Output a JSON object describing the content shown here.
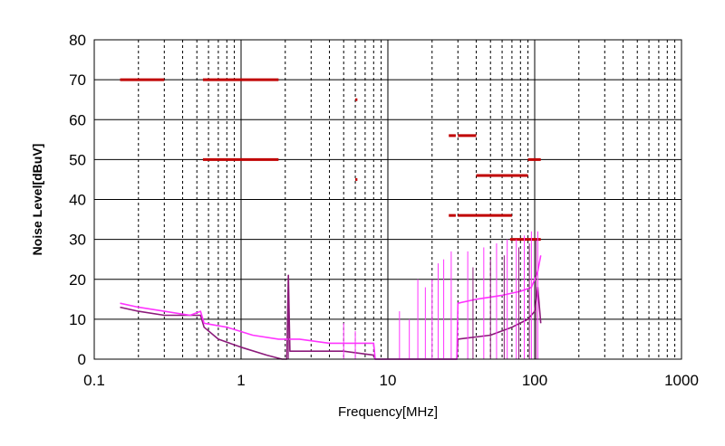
{
  "chart_data": {
    "type": "line",
    "title": "",
    "xlabel": "Frequency[MHz]",
    "ylabel": "Noise Level[dBuV]",
    "x_scale": "log",
    "xlim": [
      0.1,
      1000
    ],
    "ylim": [
      0,
      80
    ],
    "x_tick_labels": [
      "0.1",
      "1",
      "10",
      "100",
      "1000"
    ],
    "x_tick_values": [
      0.1,
      1,
      10,
      100,
      1000
    ],
    "y_tick_labels": [
      "0",
      "10",
      "20",
      "30",
      "40",
      "50",
      "60",
      "70",
      "80"
    ],
    "y_tick_values": [
      0,
      10,
      20,
      30,
      40,
      50,
      60,
      70,
      80
    ],
    "grid": true,
    "legend": "none",
    "colors": {
      "limit": "#c00000",
      "series_dark": "#8b1a7a",
      "series_light": "#ff33ff",
      "grid": "#000000"
    },
    "limit_lines": [
      {
        "x": [
          0.15,
          0.3
        ],
        "y": 70
      },
      {
        "x": [
          0.55,
          1.8
        ],
        "y": 70
      },
      {
        "x": [
          0.55,
          1.8
        ],
        "y": 50
      },
      {
        "x": [
          6.0,
          6.2
        ],
        "y": 65
      },
      {
        "x": [
          6.0,
          6.2
        ],
        "y": 45
      },
      {
        "x": [
          26,
          29
        ],
        "y": 56
      },
      {
        "x": [
          30,
          40
        ],
        "y": 56
      },
      {
        "x": [
          40,
          90
        ],
        "y": 46
      },
      {
        "x": [
          90,
          110
        ],
        "y": 50
      },
      {
        "x": [
          26,
          29
        ],
        "y": 36
      },
      {
        "x": [
          30,
          70
        ],
        "y": 36
      },
      {
        "x": [
          68,
          110
        ],
        "y": 30
      }
    ],
    "series": [
      {
        "color": "#8b1a7a",
        "x": [
          0.15,
          0.2,
          0.3,
          0.45,
          0.53,
          0.56,
          0.7,
          1.0,
          1.5,
          1.9,
          2.05,
          2.1,
          2.15,
          3.0,
          5.0,
          8.0,
          8.2,
          15,
          25,
          29.5,
          30,
          50,
          70,
          90,
          100,
          105,
          110
        ],
        "y": [
          13,
          12,
          11,
          11,
          11,
          8,
          5,
          3,
          1,
          0,
          0,
          21,
          2,
          2,
          2,
          1,
          0,
          0,
          0,
          0,
          5,
          6,
          8,
          10,
          12,
          18,
          9
        ]
      },
      {
        "color": "#ff33ff",
        "x": [
          0.15,
          0.2,
          0.3,
          0.45,
          0.53,
          0.56,
          0.8,
          1.2,
          1.8,
          2.5,
          4.0,
          6.0,
          7.5,
          8.0,
          8.2,
          15,
          25,
          29.5,
          30,
          40,
          60,
          80,
          95,
          100,
          105,
          110
        ],
        "y": [
          14,
          13,
          12,
          11,
          12,
          9,
          8,
          6,
          5,
          5,
          4,
          4,
          4,
          4,
          0,
          0,
          0,
          0,
          14,
          15,
          16,
          17,
          18,
          20,
          22,
          26
        ]
      }
    ],
    "spikes": [
      {
        "x": 6.0,
        "y": 7,
        "color": "#ff33ff"
      },
      {
        "x": 5.0,
        "y": 9,
        "color": "#ff33ff"
      },
      {
        "x": 12,
        "y": 12,
        "color": "#ff33ff"
      },
      {
        "x": 14,
        "y": 10,
        "color": "#ff33ff"
      },
      {
        "x": 16,
        "y": 20,
        "color": "#ff33ff"
      },
      {
        "x": 18,
        "y": 18,
        "color": "#ff33ff"
      },
      {
        "x": 20,
        "y": 20,
        "color": "#ff33ff"
      },
      {
        "x": 22,
        "y": 24,
        "color": "#ff33ff"
      },
      {
        "x": 24,
        "y": 25,
        "color": "#ff33ff"
      },
      {
        "x": 27,
        "y": 27,
        "color": "#ff33ff"
      },
      {
        "x": 35,
        "y": 27,
        "color": "#ff33ff"
      },
      {
        "x": 45,
        "y": 28,
        "color": "#ff33ff"
      },
      {
        "x": 55,
        "y": 29,
        "color": "#ff33ff"
      },
      {
        "x": 65,
        "y": 30,
        "color": "#ff33ff"
      },
      {
        "x": 75,
        "y": 30,
        "color": "#ff33ff"
      },
      {
        "x": 85,
        "y": 31,
        "color": "#ff33ff"
      },
      {
        "x": 95,
        "y": 32,
        "color": "#ff33ff"
      },
      {
        "x": 105,
        "y": 32,
        "color": "#ff33ff"
      },
      {
        "x": 2.1,
        "y": 21,
        "color": "#8b1a7a"
      },
      {
        "x": 38,
        "y": 23,
        "color": "#8b1a7a"
      },
      {
        "x": 50,
        "y": 25,
        "color": "#8b1a7a"
      },
      {
        "x": 62,
        "y": 26,
        "color": "#8b1a7a"
      },
      {
        "x": 78,
        "y": 28,
        "color": "#8b1a7a"
      },
      {
        "x": 92,
        "y": 29,
        "color": "#8b1a7a"
      },
      {
        "x": 102,
        "y": 30,
        "color": "#8b1a7a"
      }
    ]
  }
}
